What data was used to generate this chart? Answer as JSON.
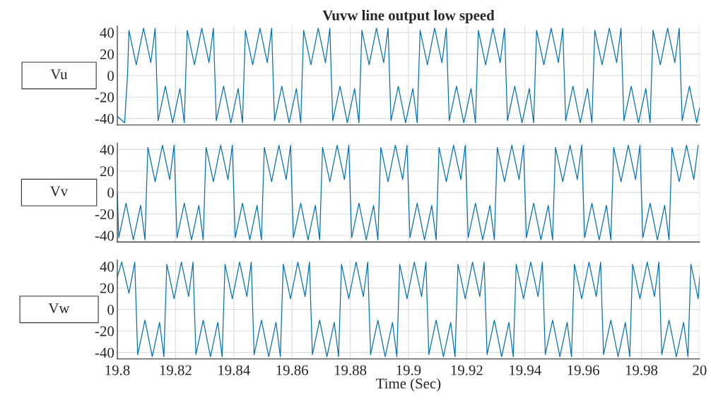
{
  "chart_data": [
    {
      "type": "line",
      "title": "Vuvw line output low speed",
      "ylabel": "Vu",
      "xlim": [
        19.8,
        20
      ],
      "ylim": [
        -46,
        46
      ],
      "xticks": [
        19.8,
        19.82,
        19.84,
        19.86,
        19.88,
        19.9,
        19.92,
        19.94,
        19.96,
        19.98,
        20
      ],
      "yticks": [
        -40,
        -20,
        0,
        20,
        40
      ],
      "grid": true,
      "tick_labels": "y",
      "series": [
        {
          "color": "#0072bd",
          "x": [
            19.8,
            19.8025,
            19.8035,
            19.804,
            19.8065,
            19.809,
            19.8115,
            19.813,
            19.8135,
            19.814,
            19.8165,
            19.819,
            19.8215,
            19.823,
            19.8235,
            19.824,
            19.8265,
            19.829,
            19.8315,
            19.833,
            19.8335,
            19.834,
            19.8365,
            19.839,
            19.8415,
            19.843,
            19.8435,
            19.844,
            19.8465,
            19.849,
            19.8515,
            19.853,
            19.8535,
            19.854,
            19.8565,
            19.859,
            19.8615,
            19.863,
            19.8635,
            19.864,
            19.8665,
            19.869,
            19.8715,
            19.873,
            19.8735,
            19.874,
            19.8765,
            19.879,
            19.8815,
            19.883,
            19.8835,
            19.884,
            19.8865,
            19.889,
            19.8915,
            19.893,
            19.8935,
            19.894,
            19.8965,
            19.899,
            19.9015,
            19.903,
            19.9035,
            19.904,
            19.9065,
            19.909,
            19.9115,
            19.913,
            19.9135,
            19.914,
            19.9165,
            19.919,
            19.9215,
            19.923,
            19.9235,
            19.924,
            19.9265,
            19.929,
            19.9315,
            19.933,
            19.9335,
            19.934,
            19.9365,
            19.939,
            19.9415,
            19.943,
            19.9435,
            19.944,
            19.9465,
            19.949,
            19.9515,
            19.953,
            19.9535,
            19.954,
            19.9565,
            19.959,
            19.9615,
            19.963,
            19.9635,
            19.964,
            19.9665,
            19.969,
            19.9715,
            19.973,
            19.9735,
            19.974,
            19.9765,
            19.979,
            19.9815,
            19.983,
            19.9835,
            19.984,
            19.9865,
            19.989,
            19.9915,
            19.993,
            19.9935,
            19.994,
            19.9965,
            19.999,
            20
          ],
          "values": [
            -38,
            -44,
            0,
            42,
            10,
            44,
            12,
            44,
            0,
            -42,
            -10,
            -44,
            -12,
            -44,
            0,
            42,
            10,
            44,
            12,
            44,
            0,
            -42,
            -10,
            -44,
            -12,
            -44,
            0,
            42,
            10,
            44,
            12,
            44,
            0,
            -42,
            -10,
            -44,
            -12,
            -44,
            0,
            42,
            10,
            44,
            12,
            44,
            0,
            -42,
            -10,
            -44,
            -12,
            -44,
            0,
            42,
            10,
            44,
            12,
            44,
            0,
            -42,
            -10,
            -44,
            -12,
            -44,
            0,
            42,
            10,
            44,
            12,
            44,
            0,
            -42,
            -10,
            -44,
            -12,
            -44,
            0,
            42,
            10,
            44,
            12,
            44,
            0,
            -42,
            -10,
            -44,
            -12,
            -44,
            0,
            42,
            10,
            44,
            12,
            44,
            0,
            -42,
            -10,
            -44,
            -12,
            -44,
            0,
            42,
            10,
            44,
            12,
            44,
            0,
            -42,
            -10,
            -44,
            -12,
            -44,
            0,
            42,
            10,
            44,
            12,
            44,
            0,
            -42,
            -10,
            -44,
            -30
          ]
        }
      ]
    },
    {
      "type": "line",
      "ylabel": "Vv",
      "xlim": [
        19.8,
        20
      ],
      "ylim": [
        -46,
        46
      ],
      "xticks": [
        19.8,
        19.82,
        19.84,
        19.86,
        19.88,
        19.9,
        19.92,
        19.94,
        19.96,
        19.98,
        20
      ],
      "yticks": [
        -40,
        -20,
        0,
        20,
        40
      ],
      "grid": true,
      "tick_labels": "y",
      "series": [
        {
          "color": "#0072bd",
          "x": [
            19.8,
            19.8005,
            19.803,
            19.8055,
            19.808,
            19.8095,
            19.81,
            19.8105,
            19.813,
            19.8155,
            19.818,
            19.8195,
            19.82,
            19.8205,
            19.823,
            19.8255,
            19.828,
            19.8295,
            19.83,
            19.8305,
            19.833,
            19.8355,
            19.838,
            19.8395,
            19.84,
            19.8405,
            19.843,
            19.8455,
            19.848,
            19.8495,
            19.85,
            19.8505,
            19.853,
            19.8555,
            19.858,
            19.8595,
            19.86,
            19.8605,
            19.863,
            19.8655,
            19.868,
            19.8695,
            19.87,
            19.8705,
            19.873,
            19.8755,
            19.878,
            19.8795,
            19.88,
            19.8805,
            19.883,
            19.8855,
            19.888,
            19.8895,
            19.89,
            19.8905,
            19.893,
            19.8955,
            19.898,
            19.8995,
            19.9,
            19.9005,
            19.903,
            19.9055,
            19.908,
            19.9095,
            19.91,
            19.9105,
            19.913,
            19.9155,
            19.918,
            19.9195,
            19.92,
            19.9205,
            19.923,
            19.9255,
            19.928,
            19.9295,
            19.93,
            19.9305,
            19.933,
            19.9355,
            19.938,
            19.9395,
            19.94,
            19.9405,
            19.943,
            19.9455,
            19.948,
            19.9495,
            19.95,
            19.9505,
            19.953,
            19.9555,
            19.958,
            19.9595,
            19.96,
            19.9605,
            19.963,
            19.9655,
            19.968,
            19.9695,
            19.97,
            19.9705,
            19.973,
            19.9755,
            19.978,
            19.9795,
            19.98,
            19.9805,
            19.983,
            19.9855,
            19.988,
            19.9895,
            19.99,
            19.9905,
            19.993,
            19.9955,
            19.998,
            19.9995
          ],
          "values": [
            0,
            -42,
            -10,
            -44,
            -12,
            -44,
            0,
            42,
            10,
            44,
            12,
            44,
            0,
            -42,
            -10,
            -44,
            -12,
            -44,
            0,
            42,
            10,
            44,
            12,
            44,
            0,
            -42,
            -10,
            -44,
            -12,
            -44,
            0,
            42,
            10,
            44,
            12,
            44,
            0,
            -42,
            -10,
            -44,
            -12,
            -44,
            0,
            42,
            10,
            44,
            12,
            44,
            0,
            -42,
            -10,
            -44,
            -12,
            -44,
            0,
            42,
            10,
            44,
            12,
            44,
            0,
            -42,
            -10,
            -44,
            -12,
            -44,
            0,
            42,
            10,
            44,
            12,
            44,
            0,
            -42,
            -10,
            -44,
            -12,
            -44,
            0,
            42,
            10,
            44,
            12,
            44,
            0,
            -42,
            -10,
            -44,
            -12,
            -44,
            0,
            42,
            10,
            44,
            12,
            44,
            0,
            -42,
            -10,
            -44,
            -12,
            -44,
            0,
            42,
            10,
            44,
            12,
            44,
            0,
            -42,
            -10,
            -44,
            -12,
            -44,
            0,
            42,
            10,
            44,
            12,
            44
          ]
        }
      ]
    },
    {
      "type": "line",
      "ylabel": "Vw",
      "xlabel": "Time (Sec)",
      "xlim": [
        19.8,
        20
      ],
      "ylim": [
        -46,
        46
      ],
      "xticks": [
        19.8,
        19.82,
        19.84,
        19.86,
        19.88,
        19.9,
        19.92,
        19.94,
        19.96,
        19.98,
        20
      ],
      "yticks": [
        -40,
        -20,
        0,
        20,
        40
      ],
      "grid": true,
      "series": [
        {
          "color": "#0072bd",
          "x": [
            19.8,
            19.8015,
            19.804,
            19.806,
            19.8065,
            19.807,
            19.8095,
            19.812,
            19.8145,
            19.816,
            19.8165,
            19.817,
            19.8195,
            19.822,
            19.8245,
            19.826,
            19.8265,
            19.827,
            19.8295,
            19.832,
            19.8345,
            19.836,
            19.8365,
            19.837,
            19.8395,
            19.842,
            19.8445,
            19.846,
            19.8465,
            19.847,
            19.8495,
            19.852,
            19.8545,
            19.856,
            19.8565,
            19.857,
            19.8595,
            19.862,
            19.8645,
            19.866,
            19.8665,
            19.867,
            19.8695,
            19.872,
            19.8745,
            19.876,
            19.8765,
            19.877,
            19.8795,
            19.882,
            19.8845,
            19.886,
            19.8865,
            19.887,
            19.8895,
            19.892,
            19.8945,
            19.896,
            19.8965,
            19.897,
            19.8995,
            19.902,
            19.9045,
            19.906,
            19.9065,
            19.907,
            19.9095,
            19.912,
            19.9145,
            19.916,
            19.9165,
            19.917,
            19.9195,
            19.922,
            19.9245,
            19.926,
            19.9265,
            19.927,
            19.9295,
            19.932,
            19.9345,
            19.936,
            19.9365,
            19.937,
            19.9395,
            19.942,
            19.9445,
            19.946,
            19.9465,
            19.947,
            19.9495,
            19.952,
            19.9545,
            19.956,
            19.9565,
            19.957,
            19.9595,
            19.962,
            19.9645,
            19.966,
            19.9665,
            19.967,
            19.9695,
            19.972,
            19.9745,
            19.976,
            19.9765,
            19.977,
            19.9795,
            19.982,
            19.9845,
            19.986,
            19.9865,
            19.987,
            19.9895,
            19.992,
            19.9945,
            19.996,
            19.9965,
            19.997,
            19.9995,
            20
          ],
          "values": [
            30,
            44,
            15,
            44,
            0,
            -42,
            -10,
            -44,
            -12,
            -44,
            0,
            42,
            10,
            44,
            12,
            44,
            0,
            -42,
            -10,
            -44,
            -12,
            -44,
            0,
            42,
            10,
            44,
            12,
            44,
            0,
            -42,
            -10,
            -44,
            -12,
            -44,
            0,
            42,
            10,
            44,
            12,
            44,
            0,
            -42,
            -10,
            -44,
            -12,
            -44,
            0,
            42,
            10,
            44,
            12,
            44,
            0,
            -42,
            -10,
            -44,
            -12,
            -44,
            0,
            42,
            10,
            44,
            12,
            44,
            0,
            -42,
            -10,
            -44,
            -12,
            -44,
            0,
            42,
            10,
            44,
            12,
            44,
            0,
            -42,
            -10,
            -44,
            -12,
            -44,
            0,
            42,
            10,
            44,
            12,
            44,
            0,
            -42,
            -10,
            -44,
            -12,
            -44,
            0,
            42,
            10,
            44,
            12,
            44,
            0,
            -42,
            -10,
            -44,
            -12,
            -44,
            0,
            42,
            10,
            44,
            12,
            44,
            0,
            -42,
            -10,
            -44,
            -12,
            -44,
            0,
            42,
            10,
            30
          ]
        }
      ]
    }
  ]
}
